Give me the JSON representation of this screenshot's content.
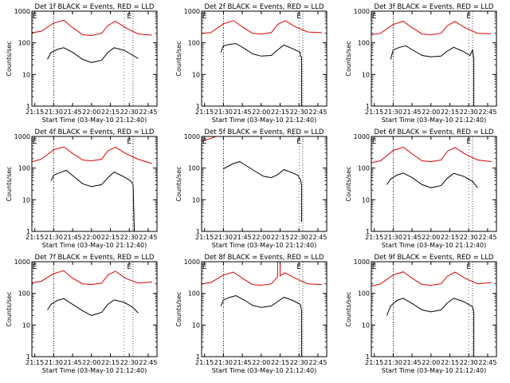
{
  "chart_data": {
    "type": "line",
    "layout": "grid-3x3",
    "y_scale": "log",
    "ylim": [
      1,
      1000
    ],
    "y_ticks": [
      {
        "value": 1,
        "label": "1"
      },
      {
        "value": 10,
        "label": "10"
      },
      {
        "value": 100,
        "label": "100"
      },
      {
        "value": 1000,
        "label": "1000"
      }
    ],
    "ylabel": "Counts/sec",
    "xlabel": "Start Time (03-May-10 21:12:40)",
    "xlim": [
      "21:12:40",
      "22:52:00"
    ],
    "x_ticks": [
      "21:15",
      "21:30",
      "21:45",
      "22:00",
      "22:15",
      "22:30",
      "22:45"
    ],
    "grid": false,
    "colors": {
      "events": "#000000",
      "lld": "#dd0000",
      "axes": "#000000"
    },
    "flags": [
      {
        "label": "E",
        "time": "21:15"
      },
      {
        "label": "E",
        "time": "22:30"
      }
    ],
    "dotted_lines": [
      "21:30",
      "22:33"
    ],
    "panels": [
      {
        "title": "Det 1f BLACK = Events, RED = LLD",
        "dashed_lines": [
          "21:30",
          "22:26"
        ],
        "series": [
          {
            "name": "LLD",
            "color": "#dd0000",
            "x": [
              "21:13",
              "21:20",
              "21:30",
              "21:38",
              "21:45",
              "21:53",
              "22:00",
              "22:08",
              "22:13",
              "22:19",
              "22:27",
              "22:37",
              "22:48"
            ],
            "y": [
              210,
              230,
              420,
              520,
              300,
              180,
              170,
              200,
              350,
              480,
              300,
              190,
              175
            ]
          },
          {
            "name": "Events",
            "color": "#000000",
            "x": [
              "21:25",
              "21:28",
              "21:33",
              "21:38",
              "21:45",
              "21:53",
              "22:00",
              "22:08",
              "22:13",
              "22:18",
              "22:26",
              "22:33",
              "22:37"
            ],
            "y": [
              30,
              50,
              62,
              70,
              50,
              30,
              24,
              28,
              50,
              70,
              58,
              40,
              32
            ]
          }
        ]
      },
      {
        "title": "Det 2f BLACK = Events, RED = LLD",
        "dashed_lines": [
          "21:30",
          "22:30"
        ],
        "series": [
          {
            "name": "LLD",
            "color": "#dd0000",
            "x": [
              "21:13",
              "21:20",
              "21:30",
              "21:38",
              "21:45",
              "21:53",
              "22:00",
              "22:08",
              "22:13",
              "22:19",
              "22:27",
              "22:37",
              "22:48"
            ],
            "y": [
              200,
              210,
              400,
              500,
              320,
              200,
              190,
              210,
              380,
              500,
              320,
              220,
              210
            ]
          },
          {
            "name": "Events",
            "color": "#000000",
            "x": [
              "21:28",
              "21:30",
              "21:35",
              "21:40",
              "21:47",
              "21:53",
              "22:00",
              "22:08",
              "22:13",
              "22:18",
              "22:25",
              "22:31",
              "22:31",
              "22:32",
              "22:32"
            ],
            "y": [
              50,
              80,
              90,
              95,
              65,
              45,
              38,
              40,
              60,
              85,
              65,
              50,
              40,
              35,
              1
            ]
          }
        ]
      },
      {
        "title": "Det 3f BLACK = Events, RED = LLD",
        "dashed_lines": [
          "21:30",
          "22:30"
        ],
        "series": [
          {
            "name": "LLD",
            "color": "#dd0000",
            "x": [
              "21:13",
              "21:20",
              "21:30",
              "21:38",
              "21:45",
              "21:53",
              "22:00",
              "22:08",
              "22:13",
              "22:19",
              "22:27",
              "22:37",
              "22:48"
            ],
            "y": [
              180,
              200,
              380,
              480,
              300,
              190,
              180,
              200,
              350,
              470,
              300,
              200,
              195
            ]
          },
          {
            "name": "Events",
            "color": "#000000",
            "x": [
              "21:28",
              "21:30",
              "21:35",
              "21:40",
              "21:47",
              "21:53",
              "22:00",
              "22:08",
              "22:13",
              "22:18",
              "22:25",
              "22:31",
              "22:33",
              "22:34",
              "22:34"
            ],
            "y": [
              30,
              60,
              72,
              80,
              55,
              40,
              36,
              38,
              55,
              72,
              55,
              40,
              60,
              30,
              1
            ]
          }
        ]
      },
      {
        "title": "Det 4f BLACK = Events, RED = LLD",
        "dashed_lines": [
          "21:30",
          "22:33"
        ],
        "series": [
          {
            "name": "LLD",
            "color": "#dd0000",
            "x": [
              "21:13",
              "21:20",
              "21:30",
              "21:38",
              "21:45",
              "21:53",
              "22:00",
              "22:08",
              "22:13",
              "22:19",
              "22:27",
              "22:37",
              "22:48"
            ],
            "y": [
              160,
              190,
              380,
              470,
              290,
              180,
              170,
              190,
              350,
              460,
              290,
              190,
              140
            ]
          },
          {
            "name": "Events",
            "color": "#000000",
            "x": [
              "21:28",
              "21:30",
              "21:35",
              "21:40",
              "21:47",
              "21:53",
              "22:00",
              "22:08",
              "22:13",
              "22:18",
              "22:25",
              "22:31",
              "22:33",
              "22:34"
            ],
            "y": [
              40,
              60,
              72,
              85,
              50,
              32,
              26,
              30,
              50,
              75,
              55,
              40,
              30,
              1
            ]
          }
        ]
      },
      {
        "title": "Det 5f BLACK = Events, RED = LLD",
        "dashed_lines": [
          "21:30",
          "22:30"
        ],
        "series": [
          {
            "name": "LLD",
            "color": "#dd0000",
            "x": [
              "21:13",
              "21:17",
              "21:21",
              "21:24"
            ],
            "y": [
              700,
              800,
              900,
              1000
            ]
          },
          {
            "name": "Events",
            "color": "#000000",
            "x": [
              "21:30",
              "21:33",
              "21:38",
              "21:43",
              "21:48",
              "21:55",
              "22:02",
              "22:08",
              "22:13",
              "22:18",
              "22:25",
              "22:29",
              "22:31",
              "22:32",
              "22:32"
            ],
            "y": [
              95,
              110,
              140,
              160,
              120,
              80,
              55,
              50,
              62,
              90,
              70,
              60,
              45,
              30,
              2
            ]
          }
        ]
      },
      {
        "title": "Det 6f BLACK = Events, RED = LLD",
        "dashed_lines": [
          "21:30",
          "22:30"
        ],
        "series": [
          {
            "name": "LLD",
            "color": "#dd0000",
            "x": [
              "21:13",
              "21:20",
              "21:30",
              "21:38",
              "21:45",
              "21:53",
              "22:00",
              "22:08",
              "22:13",
              "22:19",
              "22:27",
              "22:37",
              "22:48"
            ],
            "y": [
              150,
              170,
              360,
              460,
              280,
              170,
              160,
              180,
              340,
              450,
              280,
              180,
              160
            ]
          },
          {
            "name": "Events",
            "color": "#000000",
            "x": [
              "21:25",
              "21:28",
              "21:33",
              "21:38",
              "21:45",
              "21:53",
              "22:00",
              "22:08",
              "22:13",
              "22:18",
              "22:26",
              "22:33",
              "22:37"
            ],
            "y": [
              30,
              45,
              60,
              70,
              50,
              30,
              24,
              28,
              48,
              68,
              55,
              38,
              24
            ]
          }
        ]
      },
      {
        "title": "Det 7f BLACK = Events, RED = LLD",
        "dashed_lines": [
          "21:30",
          "22:26"
        ],
        "series": [
          {
            "name": "LLD",
            "color": "#dd0000",
            "x": [
              "21:13",
              "21:20",
              "21:30",
              "21:38",
              "21:45",
              "21:53",
              "22:00",
              "22:08",
              "22:13",
              "22:19",
              "22:27",
              "22:37",
              "22:48"
            ],
            "y": [
              220,
              240,
              420,
              520,
              300,
              200,
              190,
              210,
              380,
              500,
              300,
              210,
              230
            ]
          },
          {
            "name": "Events",
            "color": "#000000",
            "x": [
              "21:25",
              "21:28",
              "21:33",
              "21:38",
              "21:45",
              "21:53",
              "22:00",
              "22:08",
              "22:13",
              "22:18",
              "22:26",
              "22:33",
              "22:37"
            ],
            "y": [
              30,
              45,
              60,
              68,
              45,
              28,
              20,
              25,
              45,
              62,
              52,
              36,
              24
            ]
          }
        ]
      },
      {
        "title": "Det 8f BLACK = Events, RED = LLD",
        "dashed_lines": [
          "21:30",
          "22:30"
        ],
        "series": [
          {
            "name": "LLD",
            "color": "#dd0000",
            "x": [
              "21:13",
              "21:20",
              "21:30",
              "21:38",
              "21:45",
              "21:53",
              "22:00",
              "22:08",
              "22:13",
              "22:13",
              "22:15",
              "22:15",
              "22:19",
              "22:27",
              "22:37",
              "22:48"
            ],
            "y": [
              200,
              220,
              380,
              470,
              300,
              190,
              180,
              200,
              330,
              1000,
              1000,
              360,
              450,
              300,
              200,
              190
            ]
          },
          {
            "name": "Events",
            "color": "#000000",
            "x": [
              "21:28",
              "21:30",
              "21:35",
              "21:40",
              "21:47",
              "21:53",
              "22:00",
              "22:08",
              "22:13",
              "22:18",
              "22:25",
              "22:31",
              "22:32",
              "22:32"
            ],
            "y": [
              40,
              62,
              75,
              85,
              60,
              42,
              36,
              40,
              55,
              75,
              60,
              45,
              30,
              1
            ]
          }
        ]
      },
      {
        "title": "Det 9f BLACK = Events, RED = LLD",
        "dashed_lines": [
          "21:30",
          "22:30"
        ],
        "series": [
          {
            "name": "LLD",
            "color": "#dd0000",
            "x": [
              "21:13",
              "21:20",
              "21:30",
              "21:38",
              "21:45",
              "21:53",
              "22:00",
              "22:08",
              "22:13",
              "22:19",
              "22:27",
              "22:37",
              "22:48"
            ],
            "y": [
              170,
              200,
              380,
              480,
              300,
              190,
              180,
              200,
              350,
              470,
              300,
              200,
              220
            ]
          },
          {
            "name": "Events",
            "color": "#000000",
            "x": [
              "21:25",
              "21:28",
              "21:33",
              "21:38",
              "21:45",
              "21:53",
              "22:00",
              "22:08",
              "22:13",
              "22:18",
              "22:26",
              "22:33",
              "22:34",
              "22:34"
            ],
            "y": [
              20,
              40,
              60,
              70,
              48,
              30,
              26,
              30,
              50,
              70,
              55,
              38,
              25,
              1
            ]
          }
        ]
      }
    ]
  }
}
